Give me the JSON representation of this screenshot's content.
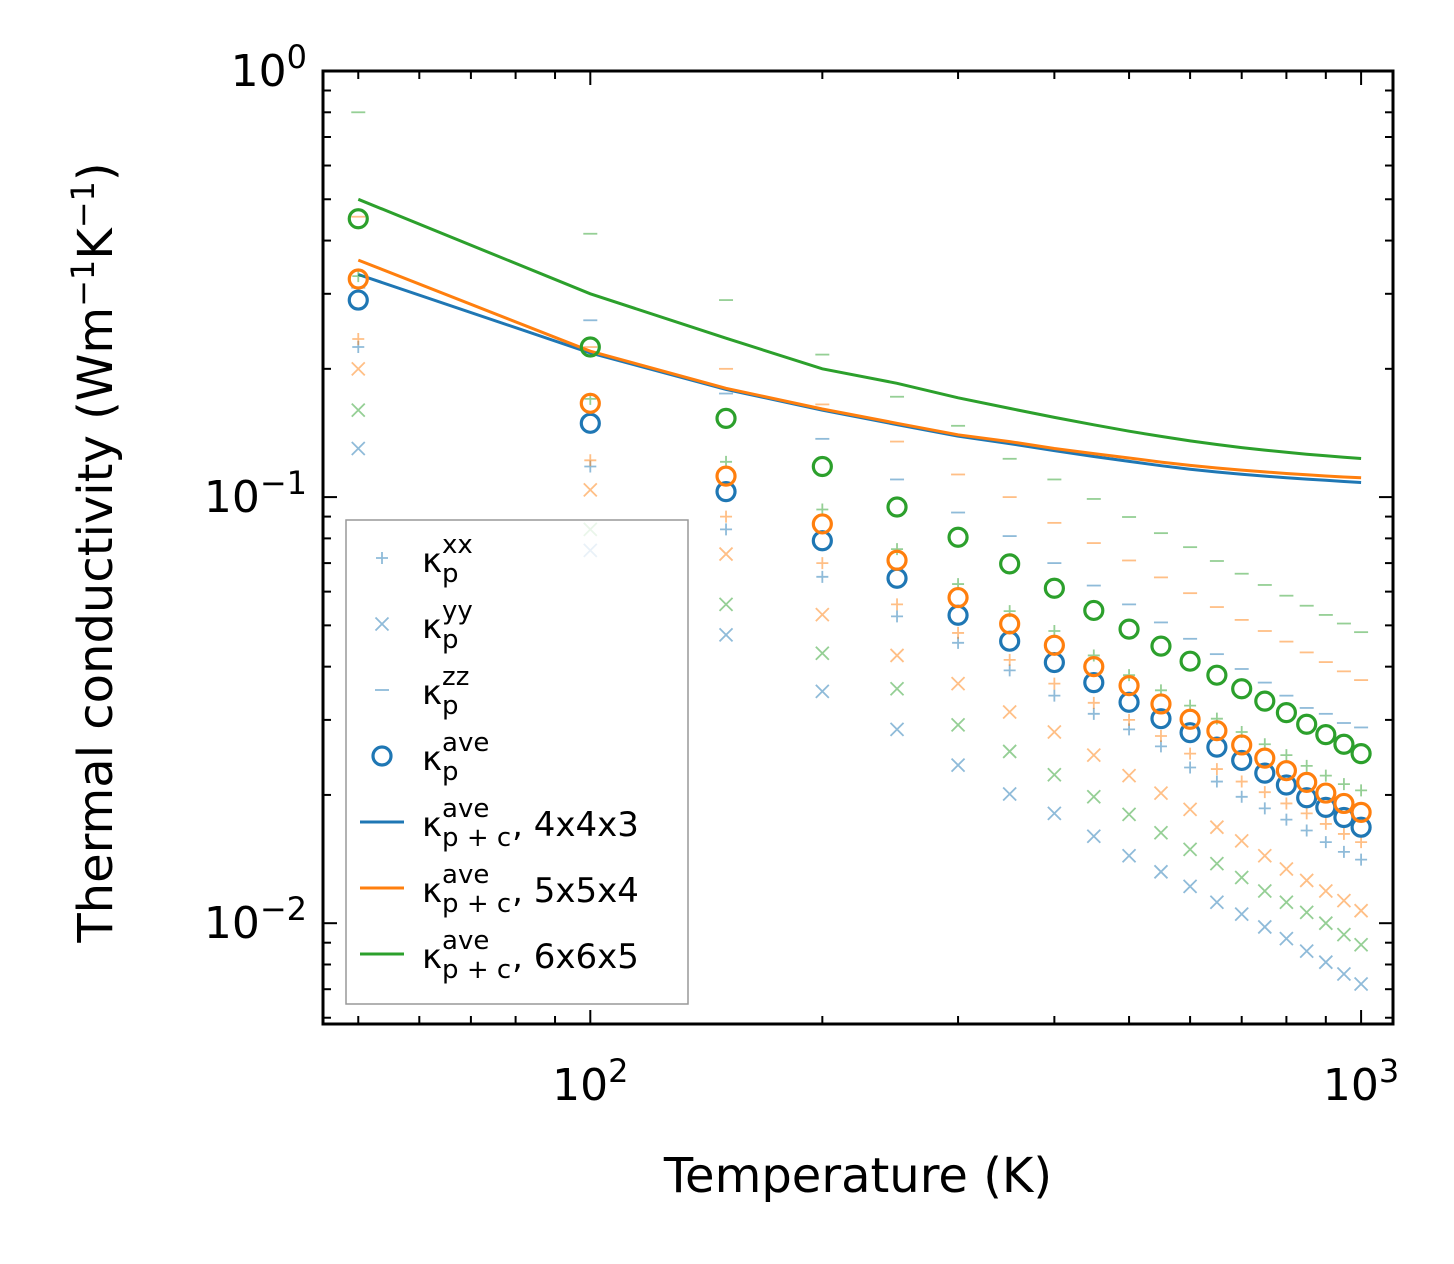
{
  "chart_data": {
    "type": "scatter",
    "xscale": "log",
    "yscale": "log",
    "xlabel": "Temperature (K)",
    "ylabel": "Thermal conductivity (Wm",
    "ylabel_sup1": "−1",
    "ylabel_mid": "K",
    "ylabel_sup2": "−1",
    "ylabel_end": ")",
    "xlim": [
      45,
      1100
    ],
    "ylim": [
      0.0058,
      1.0
    ],
    "x_ticks": [
      {
        "value": 100,
        "base": "10",
        "exp": "2"
      },
      {
        "value": 1000,
        "base": "10",
        "exp": "3"
      }
    ],
    "y_ticks": [
      {
        "value": 1.0,
        "base": "10",
        "exp": "0"
      },
      {
        "value": 0.1,
        "base": "10",
        "exp": "−1"
      },
      {
        "value": 0.01,
        "base": "10",
        "exp": "−2"
      }
    ],
    "x": [
      50,
      100,
      150,
      200,
      250,
      300,
      350,
      400,
      450,
      500,
      550,
      600,
      650,
      700,
      750,
      800,
      850,
      900,
      950,
      1000
    ],
    "scatter_series": [
      {
        "name": "4x4x3",
        "color": "#1f77b4",
        "k_xx": [
          0.225,
          0.118,
          0.084,
          0.065,
          0.0525,
          0.0455,
          0.0392,
          0.0342,
          0.031,
          0.0285,
          0.026,
          0.0232,
          0.0215,
          0.0198,
          0.0186,
          0.0175,
          0.0165,
          0.0155,
          0.0147,
          0.0141
        ],
        "k_yy": [
          0.13,
          0.075,
          0.0475,
          0.035,
          0.0285,
          0.0235,
          0.0201,
          0.0181,
          0.016,
          0.0144,
          0.0132,
          0.0122,
          0.0112,
          0.0105,
          0.0098,
          0.0092,
          0.0086,
          0.0081,
          0.0076,
          0.0072
        ],
        "k_zz": [
          0.31,
          0.26,
          0.175,
          0.137,
          0.11,
          0.092,
          0.081,
          0.07,
          0.062,
          0.056,
          0.0508,
          0.0465,
          0.0428,
          0.0395,
          0.0367,
          0.0342,
          0.032,
          0.031,
          0.0295,
          0.0288
        ],
        "k_ave": [
          0.29,
          0.149,
          0.103,
          0.079,
          0.0645,
          0.0528,
          0.0459,
          0.0409,
          0.0367,
          0.033,
          0.0302,
          0.028,
          0.0259,
          0.0241,
          0.0225,
          0.0211,
          0.0197,
          0.0187,
          0.0177,
          0.0168
        ]
      },
      {
        "name": "5x5x4",
        "color": "#ff7f0e",
        "k_xx": [
          0.235,
          0.122,
          0.09,
          0.07,
          0.056,
          0.048,
          0.0415,
          0.0365,
          0.0329,
          0.03,
          0.0275,
          0.025,
          0.023,
          0.0215,
          0.0203,
          0.0191,
          0.0181,
          0.0171,
          0.0162,
          0.0155
        ],
        "k_yy": [
          0.2,
          0.104,
          0.0735,
          0.053,
          0.0425,
          0.0365,
          0.0313,
          0.0281,
          0.0248,
          0.0222,
          0.0202,
          0.0185,
          0.0168,
          0.0156,
          0.0144,
          0.0134,
          0.0126,
          0.0119,
          0.0113,
          0.0107
        ],
        "k_zz": [
          0.455,
          0.225,
          0.2,
          0.165,
          0.135,
          0.113,
          0.1,
          0.087,
          0.078,
          0.071,
          0.0648,
          0.0595,
          0.0552,
          0.0515,
          0.0485,
          0.0458,
          0.0432,
          0.041,
          0.039,
          0.0372
        ],
        "k_ave": [
          0.325,
          0.166,
          0.112,
          0.0865,
          0.0711,
          0.0581,
          0.0504,
          0.0449,
          0.04,
          0.0361,
          0.0327,
          0.0301,
          0.0283,
          0.0262,
          0.0244,
          0.0228,
          0.0214,
          0.0202,
          0.0191,
          0.0182
        ]
      },
      {
        "name": "6x6x5",
        "color": "#2ca02c",
        "k_xx": [
          0.33,
          0.17,
          0.121,
          0.0935,
          0.0755,
          0.0625,
          0.054,
          0.0485,
          0.0425,
          0.0382,
          0.0352,
          0.0324,
          0.0302,
          0.0281,
          0.0263,
          0.0248,
          0.0234,
          0.0222,
          0.0212,
          0.0205
        ],
        "k_yy": [
          0.16,
          0.084,
          0.056,
          0.043,
          0.0355,
          0.0292,
          0.0253,
          0.0223,
          0.0198,
          0.018,
          0.0163,
          0.0149,
          0.0138,
          0.0128,
          0.0119,
          0.0112,
          0.0106,
          0.01,
          0.0094,
          0.0089
        ],
        "k_zz": [
          0.8,
          0.415,
          0.29,
          0.216,
          0.172,
          0.147,
          0.123,
          0.11,
          0.099,
          0.0898,
          0.0823,
          0.0763,
          0.0708,
          0.0661,
          0.0622,
          0.0587,
          0.0556,
          0.0529,
          0.0505,
          0.0482
        ],
        "k_ave": [
          0.45,
          0.225,
          0.153,
          0.118,
          0.0948,
          0.0805,
          0.0697,
          0.0611,
          0.0542,
          0.049,
          0.0447,
          0.0412,
          0.0382,
          0.0355,
          0.0332,
          0.0312,
          0.0293,
          0.0277,
          0.0263,
          0.025
        ]
      }
    ],
    "line_series": [
      {
        "name": "4x4x3",
        "color": "#1f77b4",
        "values": [
          0.333,
          0.218,
          0.179,
          0.16,
          0.148,
          0.139,
          0.1335,
          0.1285,
          0.1245,
          0.1213,
          0.1185,
          0.1163,
          0.1145,
          0.1132,
          0.112,
          0.111,
          0.1102,
          0.1095,
          0.1088,
          0.1082
        ]
      },
      {
        "name": "5x5x4",
        "color": "#ff7f0e",
        "values": [
          0.36,
          0.22,
          0.18,
          0.161,
          0.149,
          0.14,
          0.135,
          0.13,
          0.1265,
          0.1235,
          0.1208,
          0.1187,
          0.117,
          0.1157,
          0.1146,
          0.1136,
          0.1128,
          0.1121,
          0.1115,
          0.111
        ]
      },
      {
        "name": "6x6x5",
        "color": "#2ca02c",
        "values": [
          0.5,
          0.3,
          0.236,
          0.2,
          0.185,
          0.171,
          0.1615,
          0.1538,
          0.1478,
          0.1428,
          0.1388,
          0.1355,
          0.1329,
          0.1307,
          0.1289,
          0.1274,
          0.1261,
          0.125,
          0.124,
          0.1232
        ]
      }
    ],
    "legend": {
      "position": "lower-left",
      "entries": [
        {
          "marker": "plus",
          "main": "κ",
          "sup": "xx",
          "sub": "p",
          "rest": ""
        },
        {
          "marker": "x",
          "main": "κ",
          "sup": "yy",
          "sub": "p",
          "rest": ""
        },
        {
          "marker": "dash",
          "main": "κ",
          "sup": "zz",
          "sub": "p",
          "rest": ""
        },
        {
          "marker": "circle",
          "main": "κ",
          "sup": "ave",
          "sub": "p",
          "rest": ""
        },
        {
          "marker": "line",
          "color": "#1f77b4",
          "main": "κ",
          "sup": "ave",
          "sub": "p + c",
          "rest": ", 4x4x3"
        },
        {
          "marker": "line",
          "color": "#ff7f0e",
          "main": "κ",
          "sup": "ave",
          "sub": "p + c",
          "rest": ", 5x5x4"
        },
        {
          "marker": "line",
          "color": "#2ca02c",
          "main": "κ",
          "sup": "ave",
          "sub": "p + c",
          "rest": ", 6x6x5"
        }
      ]
    },
    "legend_marker_color": "#1f77b4"
  }
}
